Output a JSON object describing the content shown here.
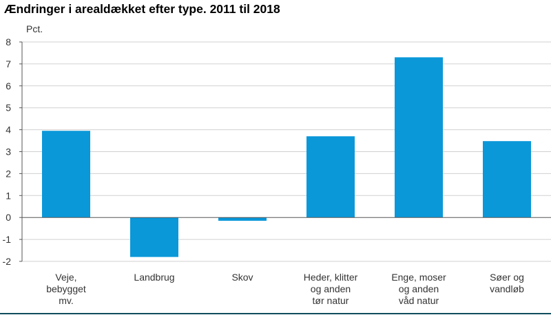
{
  "title": "Ændringer i arealdækket efter type. 2011 til 2018",
  "colors": {
    "bar": "#0a98d9",
    "grid": "#d0d0d0",
    "axis": "#555555",
    "bottom_rule": "#0f4c5c"
  },
  "chart_data": {
    "type": "bar",
    "title": "Ændringer i arealdækket efter type. 2011 til 2018",
    "ylabel": "Pct.",
    "xlabel": "",
    "ylim": [
      -2,
      8
    ],
    "yticks": [
      "-2",
      "-1",
      "0",
      "1",
      "2",
      "3",
      "4",
      "5",
      "6",
      "7",
      "8"
    ],
    "grid": true,
    "categories": [
      "Veje, bebygget mv.",
      "Landbrug",
      "Skov",
      "Heder, klitter og anden tør natur",
      "Enge, moser og anden våd natur",
      "Søer og vandløb"
    ],
    "category_lines": [
      [
        "Veje,",
        "bebygget",
        "mv."
      ],
      [
        "Landbrug"
      ],
      [
        "Skov"
      ],
      [
        "Heder, klitter",
        "og anden",
        "tør natur"
      ],
      [
        "Enge, moser",
        "og anden",
        "våd natur"
      ],
      [
        "Søer og",
        "vandløb"
      ]
    ],
    "values": [
      3.95,
      -1.8,
      -0.15,
      3.7,
      7.3,
      3.48
    ]
  }
}
